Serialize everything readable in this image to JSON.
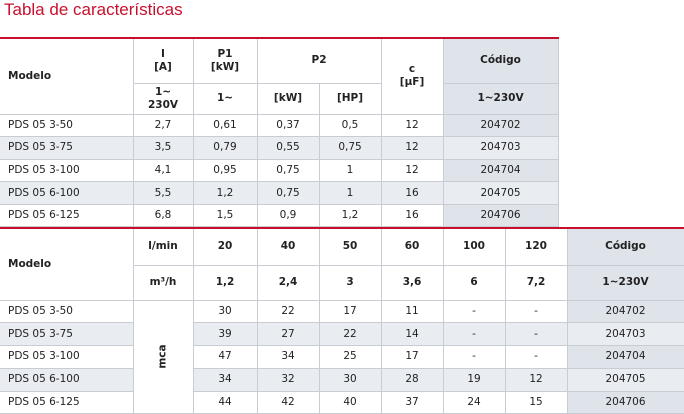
{
  "title": "Tabla de características",
  "table1": {
    "header": [
      [
        "Modelo",
        "I\n[A]",
        "P1\n[kW]",
        "P2",
        "c\n[µF]",
        "Código"
      ],
      [
        "1~\n230V",
        "1~",
        "[kW]",
        "[HP]",
        "1~230V"
      ]
    ],
    "rows": [
      [
        "PDS 05 3-50",
        "2,7",
        "0,61",
        "0,37",
        "0,5",
        "12",
        "204702"
      ],
      [
        "PDS 05 3-75",
        "3,5",
        "0,79",
        "0,55",
        "0,75",
        "12",
        "204703"
      ],
      [
        "PDS 05 3-100",
        "4,1",
        "0,95",
        "0,75",
        "1",
        "12",
        "204704"
      ],
      [
        "PDS 05 6-100",
        "5,5",
        "1,2",
        "0,75",
        "1",
        "16",
        "204705"
      ],
      [
        "PDS 05 6-125",
        "6,8",
        "1,5",
        "0,9",
        "1,2",
        "16",
        "204706"
      ]
    ]
  },
  "table2": {
    "header": [
      [
        "Modelo",
        "l/min",
        "20",
        "40",
        "50",
        "60",
        "100",
        "120",
        "Código"
      ],
      [
        "m³/h",
        "1,2",
        "2,4",
        "3",
        "3,6",
        "6",
        "7,2",
        "1~230V"
      ]
    ],
    "unit": "mca",
    "rows": [
      [
        "PDS 05 3-50",
        "30",
        "22",
        "17",
        "11",
        "-",
        "-",
        "204702"
      ],
      [
        "PDS 05 3-75",
        "39",
        "27",
        "22",
        "14",
        "-",
        "-",
        "204703"
      ],
      [
        "PDS 05 3-100",
        "47",
        "34",
        "25",
        "17",
        "-",
        "-",
        "204704"
      ],
      [
        "PDS 05 6-100",
        "34",
        "32",
        "30",
        "28",
        "19",
        "12",
        "204705"
      ],
      [
        "PDS 05 6-125",
        "44",
        "42",
        "40",
        "37",
        "24",
        "15",
        "204706"
      ]
    ]
  }
}
